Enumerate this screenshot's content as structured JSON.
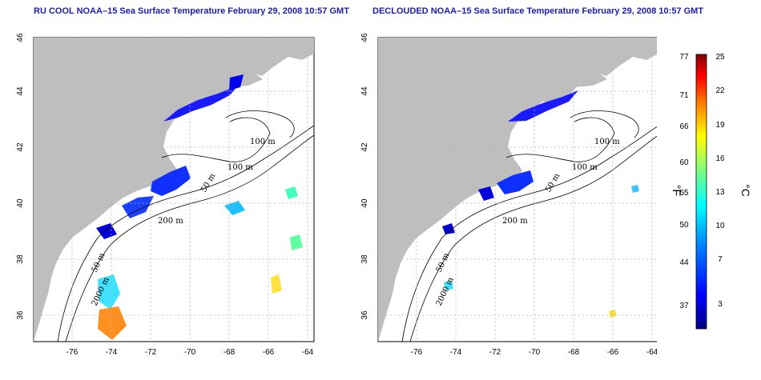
{
  "maps": [
    {
      "title": "RU COOL NOAA–15 Sea Surface Temperature February 29, 2008 10:57 GMT",
      "lon_ticks": [
        "-76",
        "-74",
        "-72",
        "-70",
        "-68",
        "-66",
        "-64"
      ],
      "lat_ticks": [
        "36",
        "38",
        "40",
        "42",
        "44",
        "46"
      ],
      "contour_labels": [
        "100 m",
        "100 m",
        "50 m",
        "200 m",
        "50 m",
        "2000 m"
      ]
    },
    {
      "title": "DECLOUDED NOAA–15 Sea Surface Temperature February 29, 2008 10:57 GMT",
      "lon_ticks": [
        "-76",
        "-74",
        "-72",
        "-70",
        "-68",
        "-66",
        "-64"
      ],
      "lat_ticks": [
        "36",
        "38",
        "40",
        "42",
        "44",
        "46"
      ],
      "contour_labels": [
        "100 m",
        "100 m",
        "50 m",
        "200 m",
        "50 m",
        "2000 m"
      ]
    }
  ],
  "colorbar": {
    "fahrenheit_unit": "°F",
    "celsius_unit": "°C",
    "fahrenheit_ticks": [
      "77",
      "71",
      "66",
      "60",
      "55",
      "50",
      "44",
      "37"
    ],
    "celsius_ticks": [
      "25",
      "22",
      "19",
      "16",
      "13",
      "10",
      "7",
      "3"
    ],
    "colors": [
      "#00007f",
      "#0000ff",
      "#007fff",
      "#00ffff",
      "#7fff7f",
      "#ffff00",
      "#ff7f00",
      "#ff0000",
      "#7f0000"
    ]
  },
  "colors": {
    "land": "#bebebe",
    "title": "#1c1cb4",
    "grid": "#b4b4b4"
  }
}
